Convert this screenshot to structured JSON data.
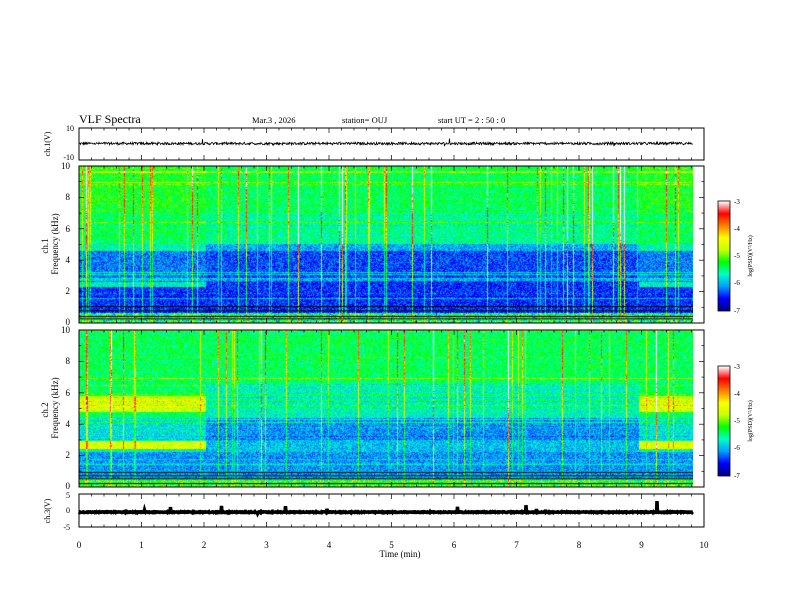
{
  "chart_data": {
    "type": "heatmap",
    "header": {
      "title": "VLF Spectra",
      "date": "Mar.3 , 2026",
      "station": "station= OUJ",
      "start": "start UT = 2 : 50 : 0"
    },
    "x": {
      "label": "Time (min)",
      "range": [
        0,
        10
      ],
      "ticks": [
        "0",
        "1",
        "2",
        "3",
        "4",
        "5",
        "6",
        "7",
        "8",
        "9",
        "10"
      ],
      "data_end": 9.82
    },
    "panels": [
      {
        "id": "ch1-waveform",
        "type": "line",
        "ylabel": "ch.1(V)",
        "ylim": [
          -10,
          10
        ],
        "yticks": [
          "10",
          "-10"
        ],
        "baseline": 0.3
      },
      {
        "id": "ch1-spectrogram",
        "type": "heatmap",
        "ylabel": "Frequency (kHz)",
        "sublabel": "ch.1",
        "ylim": [
          0,
          10
        ],
        "yticks": [
          "0",
          "2",
          "4",
          "6",
          "8",
          "10"
        ],
        "segments_min": [
          2.02,
          5.98,
          8.95
        ],
        "colorbar": {
          "range": [
            -7,
            -3
          ],
          "ticks": [
            "-3",
            "-4",
            "-5",
            "-6",
            "-7"
          ],
          "label": "log(PSD)(V²/Hz)"
        }
      },
      {
        "id": "ch2-spectrogram",
        "type": "heatmap",
        "ylabel": "Frequency (kHz)",
        "sublabel": "ch.2",
        "ylim": [
          0,
          10
        ],
        "yticks": [
          "0",
          "2",
          "4",
          "6",
          "8",
          "10"
        ],
        "bands_khz": [
          5.3,
          2.7
        ],
        "colorbar": {
          "range": [
            -7,
            -3
          ],
          "ticks": [
            "-3",
            "-4",
            "-5",
            "-6",
            "-7"
          ],
          "label": "log(PSD)(V²/Hz)"
        }
      },
      {
        "id": "ch3-waveform",
        "type": "line",
        "ylabel": "ch.3(V)",
        "ylim": [
          -5,
          5
        ],
        "yticks": [
          "5",
          "0",
          "-5"
        ],
        "baseline": -0.5
      }
    ],
    "colorscale": [
      "#000080",
      "#0000ff",
      "#00a0ff",
      "#00ffc8",
      "#00ff00",
      "#c8ff00",
      "#ffff00",
      "#ff8000",
      "#ff0000",
      "#ffffff"
    ]
  }
}
